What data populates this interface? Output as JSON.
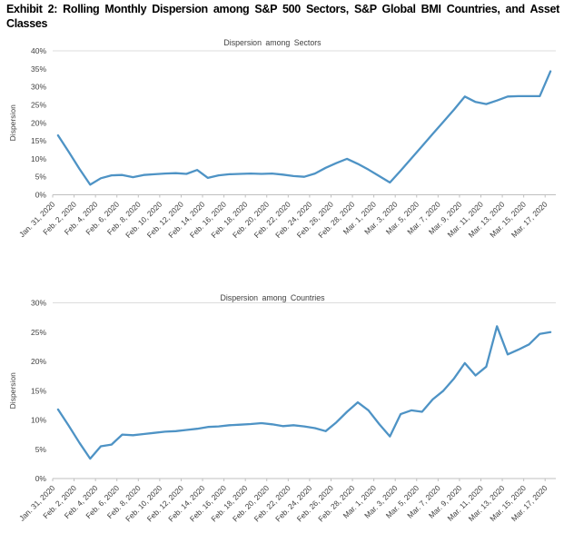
{
  "header": {
    "title": "Exhibit 2: Rolling Monthly Dispersion among S&P 500 Sectors, S&P Global BMI Countries, and Asset Classes"
  },
  "colors": {
    "line": "#4E93C5",
    "axis": "#BFBFBF",
    "plot_border": "#DCDCDC",
    "text": "#3F3F3F",
    "title_text": "#000000"
  },
  "chart_data": [
    {
      "type": "line",
      "title": "Dispersion among Sectors",
      "ylabel": "Dispersion",
      "ylim": [
        0,
        40
      ],
      "ytick_step": 5,
      "ytick_suffix": "%",
      "grid": false,
      "legend": "none",
      "x_label_every": 2,
      "line_color": "#4E93C5",
      "x": [
        "Jan. 31, 2020",
        "Feb. 1, 2020",
        "Feb. 2, 2020",
        "Feb. 3, 2020",
        "Feb. 4, 2020",
        "Feb. 5, 2020",
        "Feb. 6, 2020",
        "Feb. 7, 2020",
        "Feb. 8, 2020",
        "Feb. 9, 2020",
        "Feb. 10, 2020",
        "Feb. 11, 2020",
        "Feb. 12, 2020",
        "Feb. 13, 2020",
        "Feb. 14, 2020",
        "Feb. 15, 2020",
        "Feb. 16, 2020",
        "Feb. 17, 2020",
        "Feb. 18, 2020",
        "Feb. 19, 2020",
        "Feb. 20, 2020",
        "Feb. 21, 2020",
        "Feb. 22, 2020",
        "Feb. 23, 2020",
        "Feb. 24, 2020",
        "Feb. 25, 2020",
        "Feb. 26, 2020",
        "Feb. 27, 2020",
        "Feb. 28, 2020",
        "Feb. 29, 2020",
        "Mar. 1, 2020",
        "Mar. 2, 2020",
        "Mar. 3, 2020",
        "Mar. 4, 2020",
        "Mar. 5, 2020",
        "Mar. 6, 2020",
        "Mar. 7, 2020",
        "Mar. 8, 2020",
        "Mar. 9, 2020",
        "Mar. 10, 2020",
        "Mar. 11, 2020",
        "Mar. 12, 2020",
        "Mar. 13, 2020",
        "Mar. 14, 2020",
        "Mar. 15, 2020",
        "Mar. 16, 2020",
        "Mar. 17, 2020"
      ],
      "values": [
        16.5,
        11.9,
        7.2,
        2.8,
        4.6,
        5.4,
        5.5,
        4.9,
        5.5,
        5.7,
        5.9,
        6.0,
        5.8,
        6.9,
        4.7,
        5.4,
        5.7,
        5.8,
        5.9,
        5.8,
        5.9,
        5.6,
        5.2,
        5.0,
        5.9,
        7.5,
        8.8,
        10.0,
        8.6,
        7.0,
        5.2,
        3.4,
        6.7,
        10.1,
        13.5,
        16.9,
        20.3,
        23.7,
        27.3,
        25.8,
        25.2,
        26.2,
        27.3,
        27.4,
        27.4,
        27.4,
        34.3
      ]
    },
    {
      "type": "line",
      "title": "Dispersion among Countries",
      "ylabel": "Dispersion",
      "ylim": [
        0,
        30
      ],
      "ytick_step": 5,
      "ytick_suffix": "%",
      "grid": false,
      "legend": "none",
      "x_label_every": 2,
      "line_color": "#4E93C5",
      "x": [
        "Jan. 31, 2020",
        "Feb. 1, 2020",
        "Feb. 2, 2020",
        "Feb. 3, 2020",
        "Feb. 4, 2020",
        "Feb. 5, 2020",
        "Feb. 6, 2020",
        "Feb. 7, 2020",
        "Feb. 8, 2020",
        "Feb. 9, 2020",
        "Feb. 10, 2020",
        "Feb. 11, 2020",
        "Feb. 12, 2020",
        "Feb. 13, 2020",
        "Feb. 14, 2020",
        "Feb. 15, 2020",
        "Feb. 16, 2020",
        "Feb. 17, 2020",
        "Feb. 18, 2020",
        "Feb. 19, 2020",
        "Feb. 20, 2020",
        "Feb. 21, 2020",
        "Feb. 22, 2020",
        "Feb. 23, 2020",
        "Feb. 24, 2020",
        "Feb. 25, 2020",
        "Feb. 26, 2020",
        "Feb. 27, 2020",
        "Feb. 28, 2020",
        "Feb. 29, 2020",
        "Mar. 1, 2020",
        "Mar. 2, 2020",
        "Mar. 3, 2020",
        "Mar. 4, 2020",
        "Mar. 5, 2020",
        "Mar. 6, 2020",
        "Mar. 7, 2020",
        "Mar. 8, 2020",
        "Mar. 9, 2020",
        "Mar. 10, 2020",
        "Mar. 11, 2020",
        "Mar. 12, 2020",
        "Mar. 13, 2020",
        "Mar. 14, 2020",
        "Mar. 15, 2020",
        "Mar. 16, 2020",
        "Mar. 17, 2020"
      ],
      "values": [
        11.8,
        9.0,
        6.1,
        3.4,
        5.5,
        5.8,
        7.5,
        7.4,
        7.6,
        7.8,
        8.0,
        8.1,
        8.3,
        8.5,
        8.8,
        8.9,
        9.1,
        9.2,
        9.3,
        9.45,
        9.25,
        8.95,
        9.1,
        8.9,
        8.6,
        8.1,
        9.6,
        11.4,
        13.0,
        11.65,
        9.3,
        7.2,
        11.0,
        11.65,
        11.4,
        13.5,
        15.0,
        17.1,
        19.7,
        17.6,
        19.1,
        26.0,
        21.2,
        22.0,
        22.9,
        24.7,
        25.0
      ]
    }
  ]
}
